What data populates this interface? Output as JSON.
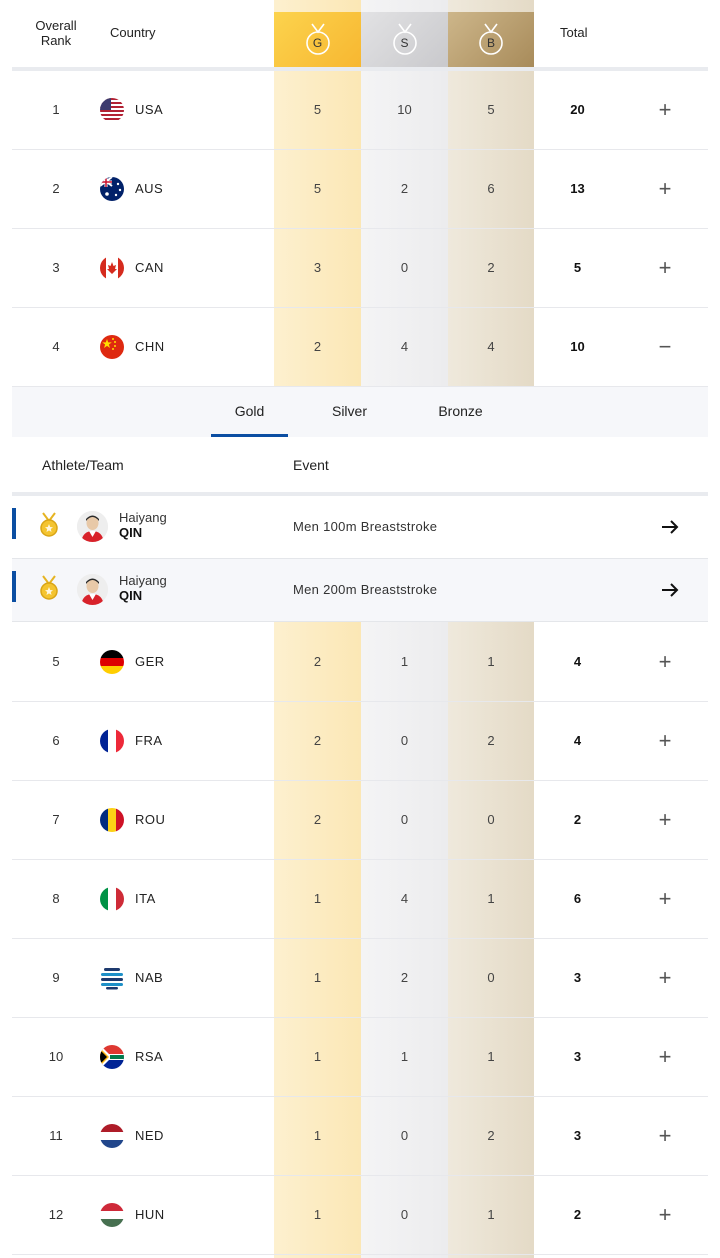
{
  "header": {
    "rank_label": "Overall Rank",
    "country_label": "Country",
    "gold_label": "G",
    "silver_label": "S",
    "bronze_label": "B",
    "total_label": "Total"
  },
  "colors": {
    "gold": "#f7b731",
    "silver": "#c9c9cc",
    "bronze": "#a88b5a",
    "accent": "#0b4ea2"
  },
  "rows_top": [
    {
      "rank": "1",
      "code": "USA",
      "gold": "5",
      "silver": "10",
      "bronze": "5",
      "total": "20",
      "toggle": "+"
    },
    {
      "rank": "2",
      "code": "AUS",
      "gold": "5",
      "silver": "2",
      "bronze": "6",
      "total": "13",
      "toggle": "+"
    },
    {
      "rank": "3",
      "code": "CAN",
      "gold": "3",
      "silver": "0",
      "bronze": "2",
      "total": "5",
      "toggle": "+"
    },
    {
      "rank": "4",
      "code": "CHN",
      "gold": "2",
      "silver": "4",
      "bronze": "4",
      "total": "10",
      "toggle": "−"
    }
  ],
  "detail": {
    "tabs": [
      {
        "label": "Gold"
      },
      {
        "label": "Silver"
      },
      {
        "label": "Bronze"
      }
    ],
    "athlete_header": "Athlete/Team",
    "event_header": "Event",
    "events": [
      {
        "first_name": "Haiyang",
        "last_name": "QIN",
        "event": "Men 100m Breaststroke",
        "medal_icon": "gold-medal-icon",
        "arrow_icon": "arrow-right-icon"
      },
      {
        "first_name": "Haiyang",
        "last_name": "QIN",
        "event": "Men 200m Breaststroke",
        "medal_icon": "gold-medal-icon",
        "arrow_icon": "arrow-right-icon"
      }
    ]
  },
  "rows_bottom": [
    {
      "rank": "5",
      "code": "GER",
      "gold": "2",
      "silver": "1",
      "bronze": "1",
      "total": "4",
      "toggle": "+"
    },
    {
      "rank": "6",
      "code": "FRA",
      "gold": "2",
      "silver": "0",
      "bronze": "2",
      "total": "4",
      "toggle": "+"
    },
    {
      "rank": "7",
      "code": "ROU",
      "gold": "2",
      "silver": "0",
      "bronze": "0",
      "total": "2",
      "toggle": "+"
    },
    {
      "rank": "8",
      "code": "ITA",
      "gold": "1",
      "silver": "4",
      "bronze": "1",
      "total": "6",
      "toggle": "+"
    },
    {
      "rank": "9",
      "code": "NAB",
      "gold": "1",
      "silver": "2",
      "bronze": "0",
      "total": "3",
      "toggle": "+"
    },
    {
      "rank": "10",
      "code": "RSA",
      "gold": "1",
      "silver": "1",
      "bronze": "1",
      "total": "3",
      "toggle": "+"
    },
    {
      "rank": "11",
      "code": "NED",
      "gold": "1",
      "silver": "0",
      "bronze": "2",
      "total": "3",
      "toggle": "+"
    },
    {
      "rank": "12",
      "code": "HUN",
      "gold": "1",
      "silver": "0",
      "bronze": "1",
      "total": "2",
      "toggle": "+"
    }
  ]
}
